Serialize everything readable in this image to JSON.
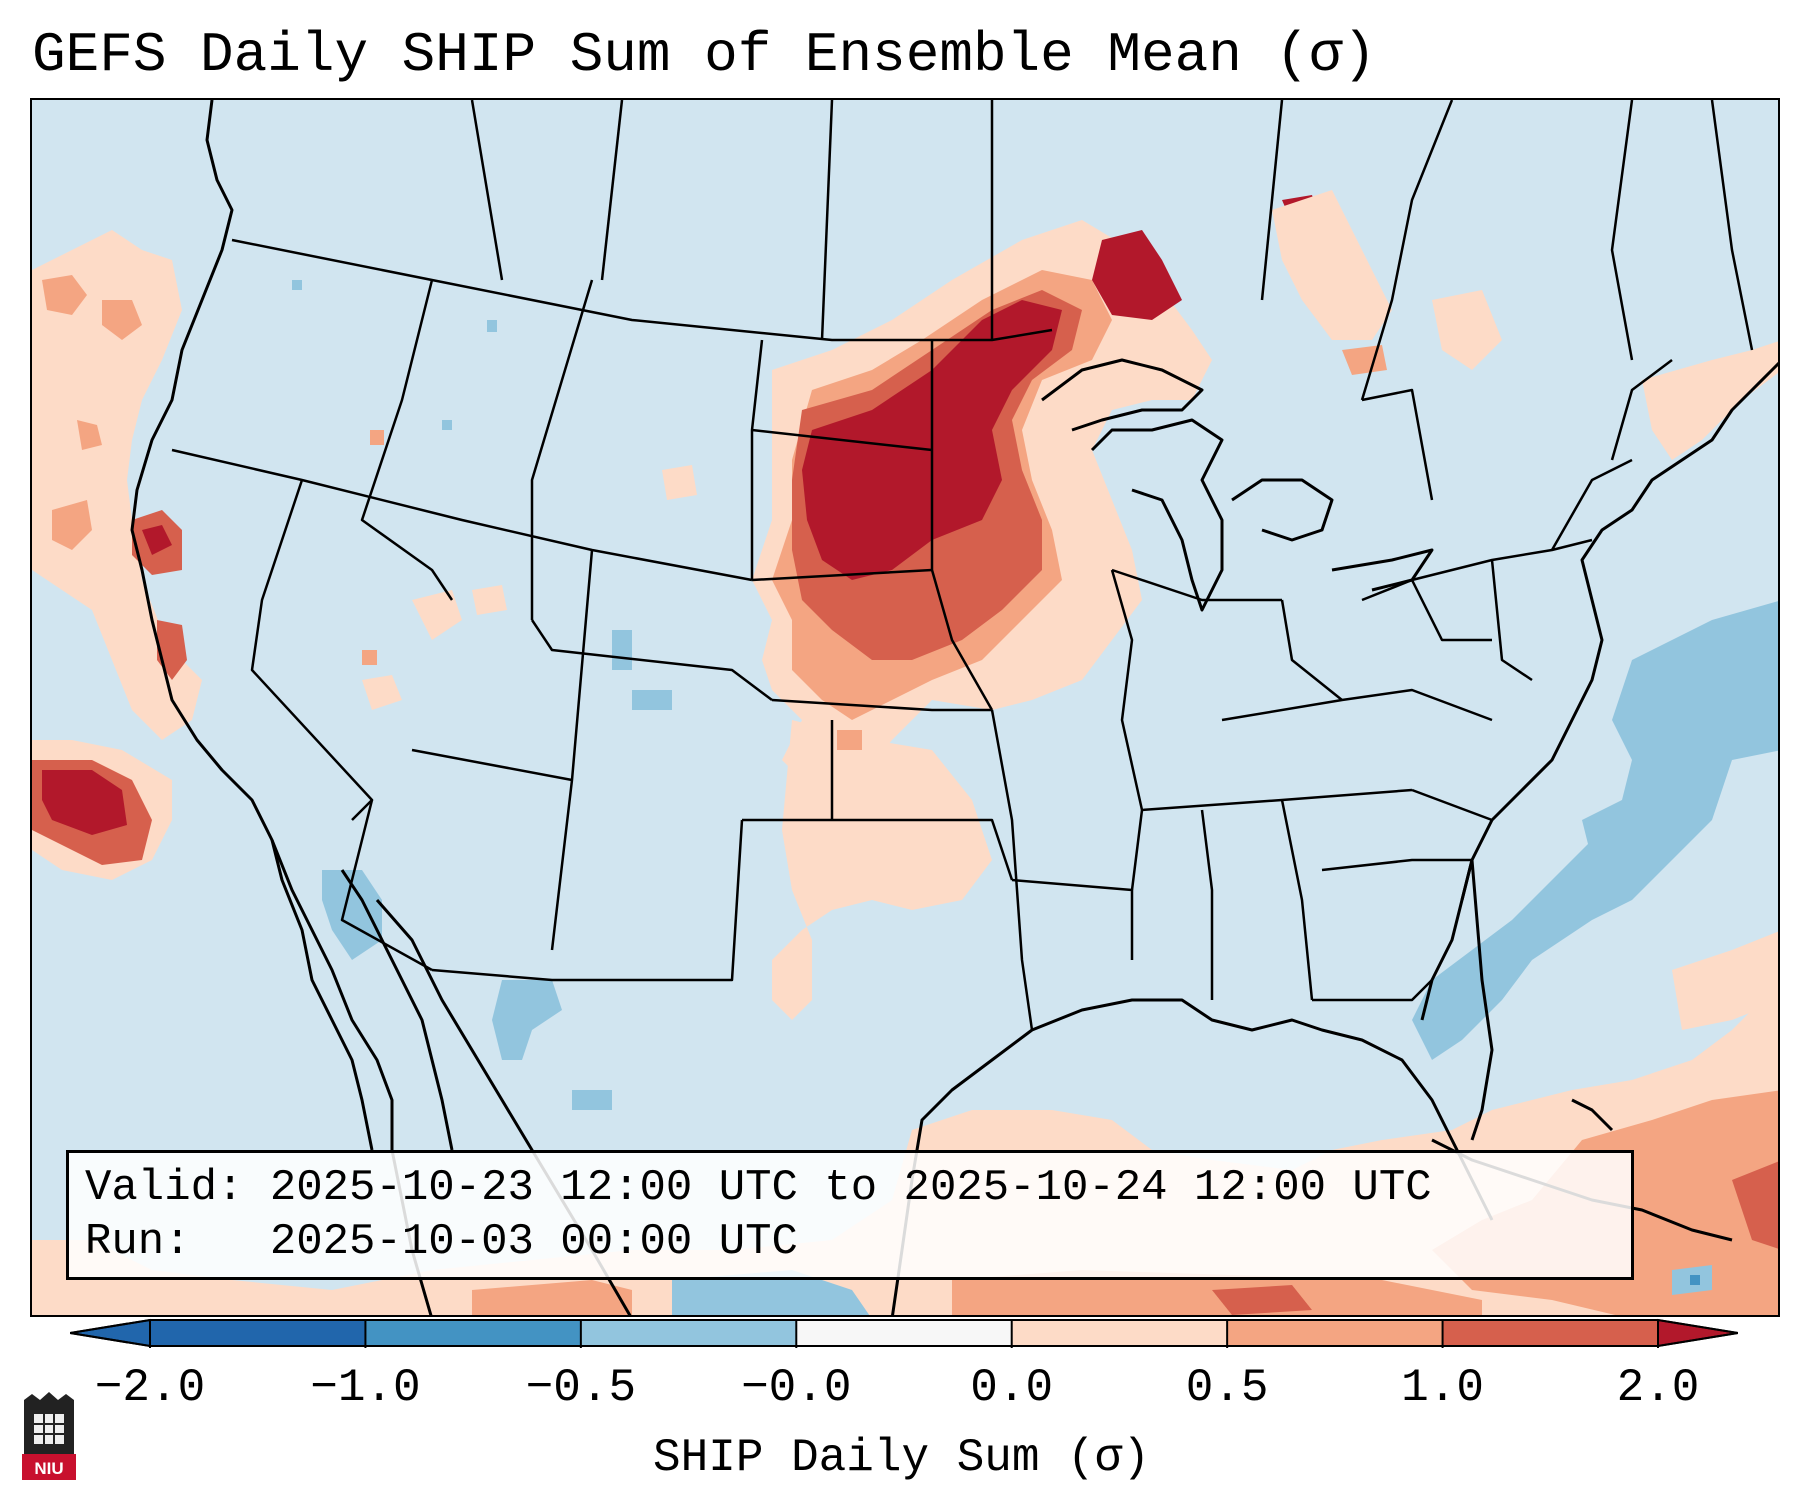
{
  "title": "GEFS Daily SHIP Sum of Ensemble Mean (σ)",
  "valid_label": "Valid:",
  "valid_value": "2025-10-23 12:00 UTC to 2025-10-24 12:00 UTC",
  "run_label": "Run:",
  "run_value": "2025-10-03 00:00 UTC",
  "colorbar": {
    "label": "SHIP Daily Sum (σ)",
    "ticks": [
      "−2.0",
      "−1.0",
      "−0.5",
      "−0.0",
      "0.0",
      "0.5",
      "1.0",
      "2.0"
    ],
    "colors": [
      "#2166ac",
      "#4393c3",
      "#92c5de",
      "#d1e5f0",
      "#fddbc7",
      "#f4a582",
      "#d6604d",
      "#b2182b"
    ],
    "under_color": "#2166ac",
    "over_color": "#b2182b"
  },
  "map": {
    "background_color": "#d1e5f0",
    "border_color": "#000000"
  },
  "logo_text": "NIU"
}
